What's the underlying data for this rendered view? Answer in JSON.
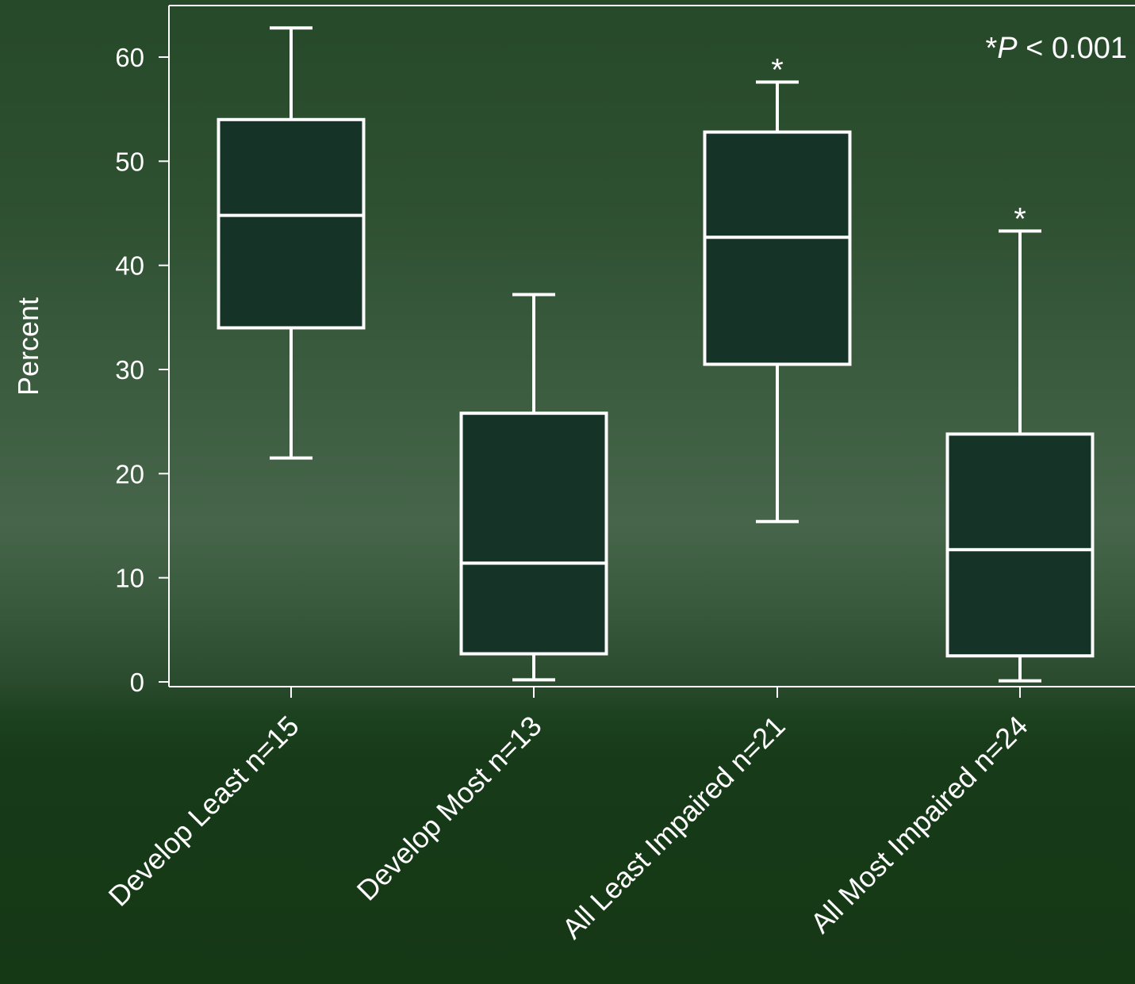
{
  "chart_data": {
    "type": "box",
    "title": "",
    "xlabel": "",
    "ylabel": "Percent",
    "ylim": [
      0,
      65
    ],
    "yticks": [
      0,
      10,
      20,
      30,
      40,
      50,
      60
    ],
    "grid": false,
    "annotation": {
      "prefix": "*",
      "p_symbol": "P",
      "text": " < 0.001"
    },
    "categories": [
      "Develop Least n=15",
      "Develop Most n=13",
      "All Least Impaired n=21",
      "All Most Impaired n=24"
    ],
    "boxes": [
      {
        "min": 21.5,
        "q1": 34.0,
        "median": 44.8,
        "q3": 54.0,
        "max": 62.8,
        "marker": ""
      },
      {
        "min": 0.2,
        "q1": 2.7,
        "median": 11.4,
        "q3": 25.8,
        "max": 37.2,
        "marker": ""
      },
      {
        "min": 15.4,
        "q1": 30.5,
        "median": 42.7,
        "q3": 52.8,
        "max": 57.6,
        "marker": "*"
      },
      {
        "min": 0.1,
        "q1": 2.5,
        "median": 12.7,
        "q3": 23.8,
        "max": 43.3,
        "marker": "*"
      }
    ],
    "colors": {
      "box_fill": "#163328",
      "stroke": "#ffffff"
    }
  }
}
